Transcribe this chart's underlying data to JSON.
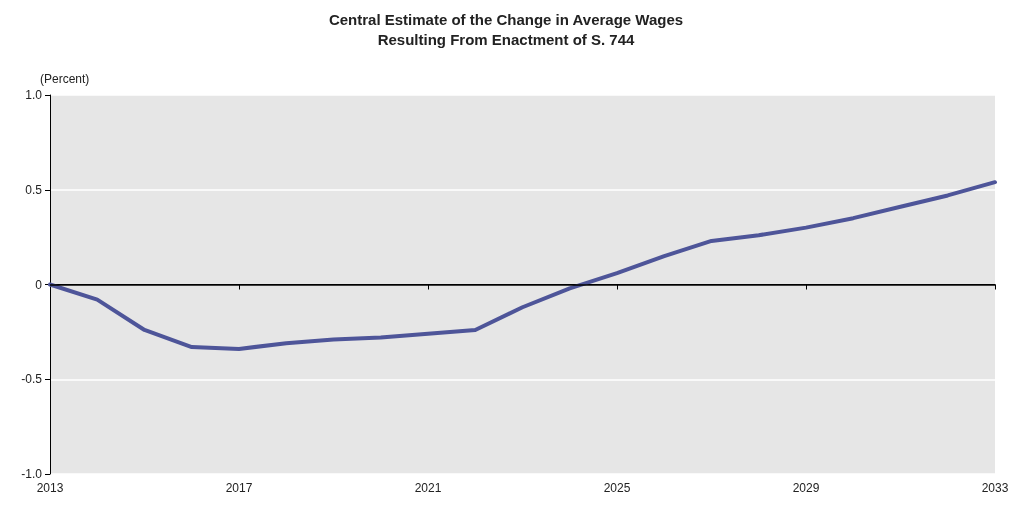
{
  "chart_data": {
    "type": "line",
    "title": "Central Estimate of the Change in Average Wages\nResulting From Enactment of S. 744",
    "ylabel": "(Percent)",
    "x": [
      2013,
      2014,
      2015,
      2016,
      2017,
      2018,
      2019,
      2020,
      2021,
      2022,
      2023,
      2024,
      2025,
      2026,
      2027,
      2028,
      2029,
      2030,
      2031,
      2032,
      2033
    ],
    "series": [
      {
        "color": "#4e5599",
        "values": [
          0,
          -0.08,
          -0.24,
          -0.33,
          -0.34,
          -0.31,
          -0.29,
          -0.28,
          -0.26,
          -0.24,
          -0.12,
          -0.02,
          0.06,
          0.15,
          0.23,
          0.26,
          0.3,
          0.35,
          0.41,
          0.47,
          0.54
        ]
      }
    ],
    "xlim": [
      2013,
      2033
    ],
    "xticks": [
      2013,
      2017,
      2021,
      2025,
      2029,
      2033
    ],
    "ylim": [
      -1,
      1
    ],
    "yticks": [
      {
        "value": -1,
        "label": "-1.0"
      },
      {
        "value": -0.5,
        "label": "-0.5"
      },
      0,
      {
        "value": 0.5,
        "label": "0.5"
      },
      {
        "value": 1,
        "label": "1.0"
      }
    ],
    "ref_lines": [
      {
        "axis": "y",
        "value": 0,
        "color": "#000000"
      }
    ],
    "grid": "y",
    "marker": "none",
    "line_style": "solid"
  }
}
